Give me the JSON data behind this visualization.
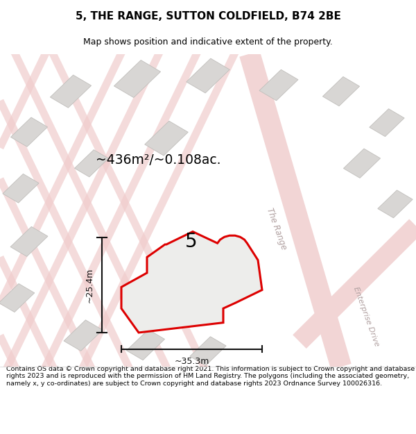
{
  "title": "5, THE RANGE, SUTTON COLDFIELD, B74 2BE",
  "subtitle": "Map shows position and indicative extent of the property.",
  "area_label": "~436m²/~0.108ac.",
  "property_number": "5",
  "dim_width": "~35.3m",
  "dim_height": "~25.4m",
  "street_range": "The Range",
  "street_enterprise": "Enterprise Drive",
  "footer": "Contains OS data © Crown copyright and database right 2021. This information is subject to Crown copyright and database rights 2023 and is reproduced with the permission of HM Land Registry. The polygons (including the associated geometry, namely x, y co-ordinates) are subject to Crown copyright and database rights 2023 Ordnance Survey 100026316.",
  "map_bg": "#eeeceb",
  "road_fill": "#f5d5d5",
  "road_edge": "#e8c0c0",
  "building_fill": "#d8d6d4",
  "building_edge": "#c8c6c4",
  "property_fill": "#ededeb",
  "property_outline": "#dd0000",
  "dim_color": "#111111",
  "street_label_color": "#b0a0a0",
  "title_fontsize": 11,
  "subtitle_fontsize": 9,
  "footer_fontsize": 6.8
}
